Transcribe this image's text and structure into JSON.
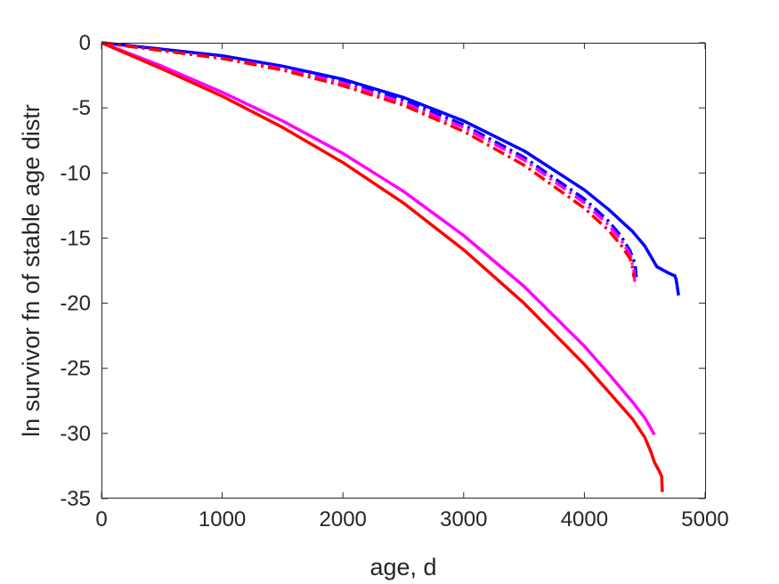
{
  "chart_data": {
    "type": "line",
    "title": "",
    "xlabel": "age, d",
    "ylabel": "ln survivor fn of stable age distr",
    "xlim": [
      0,
      5000
    ],
    "ylim": [
      -35,
      0
    ],
    "xticks": [
      0,
      1000,
      2000,
      3000,
      4000,
      5000
    ],
    "yticks": [
      0,
      -5,
      -10,
      -15,
      -20,
      -25,
      -30,
      -35
    ],
    "xtick_labels": [
      "0",
      "1000",
      "2000",
      "3000",
      "4000",
      "5000"
    ],
    "ytick_labels": [
      "0",
      "-5",
      "-10",
      "-15",
      "-20",
      "-25",
      "-30",
      "-35"
    ],
    "grid": false,
    "legend": "none",
    "series": [
      {
        "color": "#0000ff",
        "style": "solid",
        "x": [
          0,
          500,
          1000,
          1500,
          2000,
          2500,
          3000,
          3500,
          4000,
          4200,
          4400,
          4500,
          4600,
          4700,
          4750,
          4760,
          4780
        ],
        "y": [
          0,
          -0.5,
          -1.0,
          -1.8,
          -2.8,
          -4.2,
          -6.0,
          -8.3,
          -11.3,
          -12.8,
          -14.5,
          -15.6,
          -17.2,
          -17.7,
          -17.9,
          -18.2,
          -19.4
        ]
      },
      {
        "color": "#0000ff",
        "style": "dashdot",
        "x": [
          0,
          500,
          1000,
          1500,
          2000,
          2500,
          3000,
          3500,
          4000,
          4200,
          4300,
          4380,
          4420,
          4430
        ],
        "y": [
          0,
          -0.5,
          -1.1,
          -1.9,
          -3.0,
          -4.4,
          -6.3,
          -8.8,
          -12.0,
          -13.7,
          -14.8,
          -16.0,
          -17.0,
          -18.0
        ]
      },
      {
        "color": "#ff00ff",
        "style": "dashdot",
        "x": [
          0,
          500,
          1000,
          1500,
          2000,
          2500,
          3000,
          3500,
          4000,
          4200,
          4300,
          4380,
          4410,
          4420
        ],
        "y": [
          0,
          -0.6,
          -1.2,
          -2.0,
          -3.1,
          -4.6,
          -6.5,
          -9.0,
          -12.3,
          -14.0,
          -15.1,
          -16.3,
          -17.5,
          -18.7
        ]
      },
      {
        "color": "#ff0000",
        "style": "dashdot",
        "x": [
          0,
          500,
          1000,
          1500,
          2000,
          2500,
          3000,
          3500,
          4000,
          4200,
          4300,
          4380,
          4400,
          4410
        ],
        "y": [
          0,
          -0.6,
          -1.2,
          -2.1,
          -3.3,
          -4.8,
          -6.8,
          -9.4,
          -12.7,
          -14.4,
          -15.5,
          -16.6,
          -17.3,
          -18.0
        ]
      },
      {
        "color": "#ff00ff",
        "style": "solid",
        "x": [
          0,
          500,
          1000,
          1500,
          2000,
          2500,
          3000,
          3500,
          4000,
          4200,
          4400,
          4500,
          4550,
          4580
        ],
        "y": [
          0,
          -1.8,
          -3.8,
          -6.0,
          -8.5,
          -11.4,
          -14.8,
          -18.7,
          -23.3,
          -25.4,
          -27.6,
          -28.8,
          -29.6,
          -30.1
        ]
      },
      {
        "color": "#ff0000",
        "style": "solid",
        "x": [
          0,
          500,
          1000,
          1500,
          2000,
          2500,
          3000,
          3500,
          4000,
          4200,
          4400,
          4500,
          4550,
          4580,
          4620,
          4640,
          4645
        ],
        "y": [
          0,
          -2.0,
          -4.1,
          -6.5,
          -9.2,
          -12.3,
          -15.9,
          -20.0,
          -24.7,
          -26.8,
          -28.9,
          -30.3,
          -31.4,
          -32.2,
          -32.9,
          -33.3,
          -34.5
        ]
      }
    ]
  }
}
